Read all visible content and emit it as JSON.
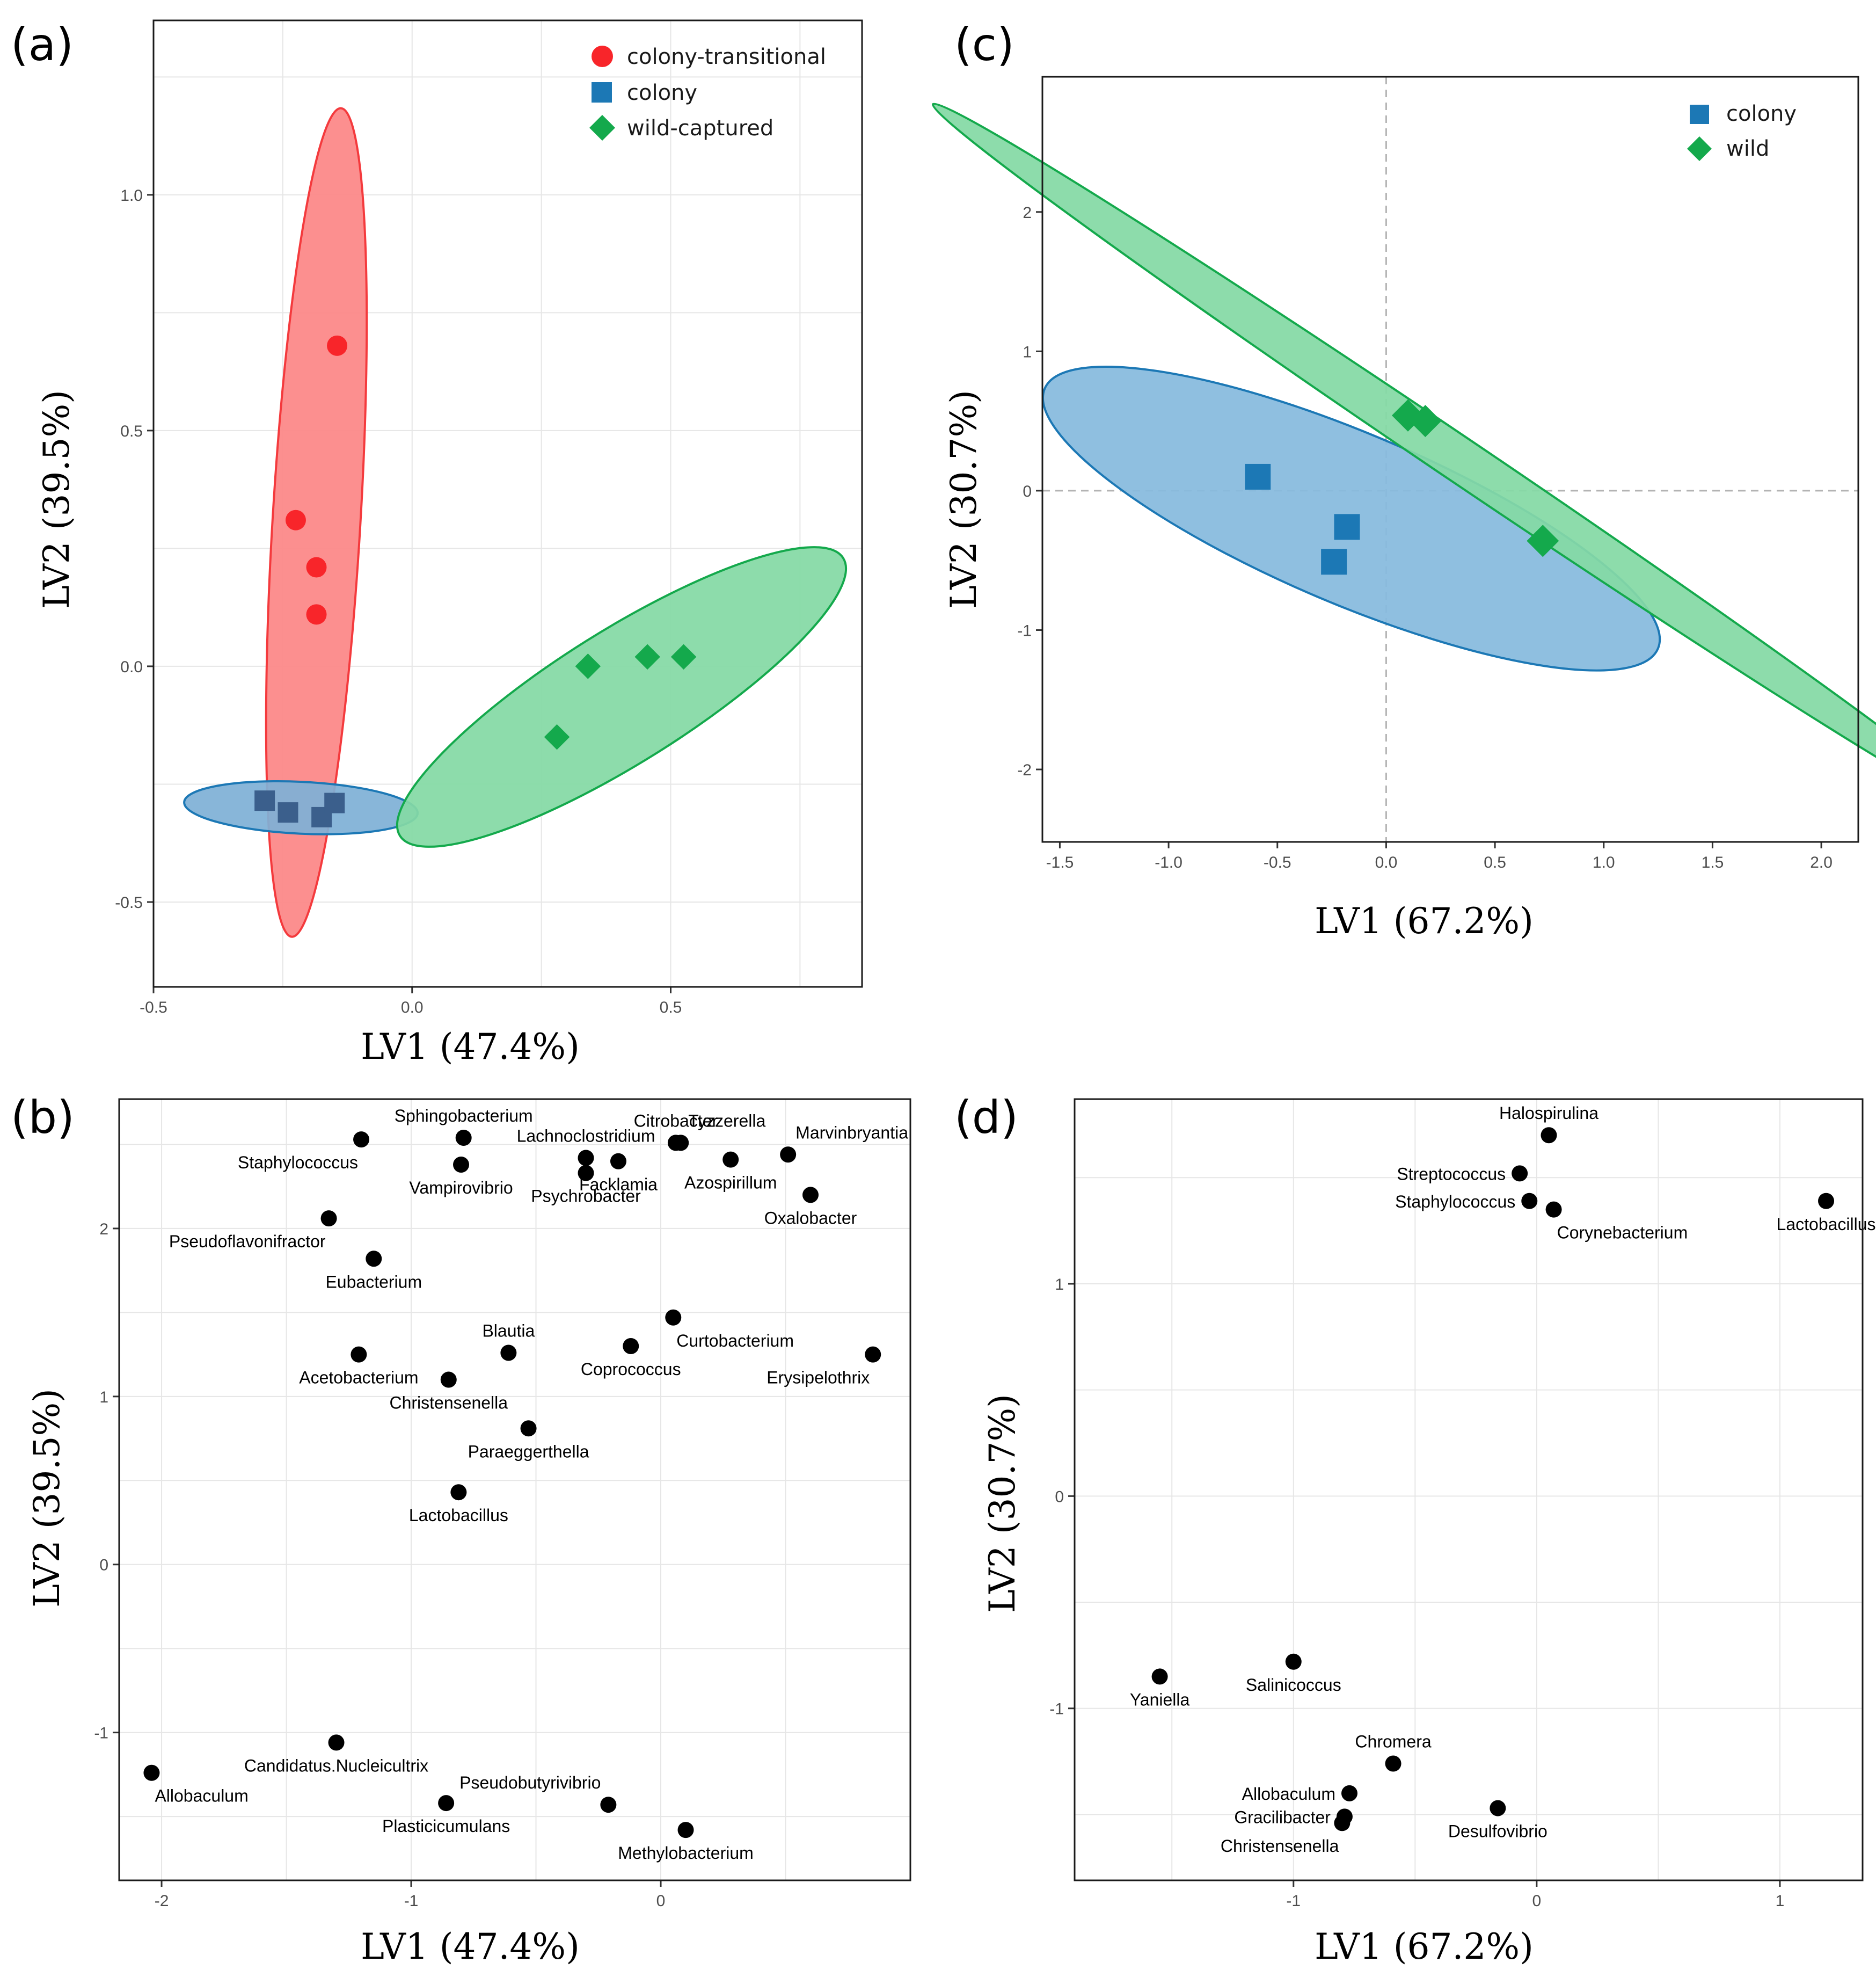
{
  "chart_data": [
    {
      "id": "a",
      "panel_label": "(a)",
      "type": "scatter",
      "xlabel": "LV1 (47.4%)",
      "ylabel": "LV2 (39.5%)",
      "xlim": [
        -0.5,
        0.87
      ],
      "ylim": [
        -0.68,
        1.37
      ],
      "xticks": [
        -0.5,
        0.0,
        0.5
      ],
      "xtick_labels": [
        "-0.5",
        "0.0",
        "0.5"
      ],
      "yticks": [
        -0.5,
        0.0,
        0.5,
        1.0
      ],
      "ytick_labels": [
        "-0.5",
        "0.0",
        "0.5",
        "1.0"
      ],
      "grid": true,
      "reference_lines": false,
      "legend_position": "top-right",
      "series": [
        {
          "name": "colony-transitional",
          "marker": "circle",
          "color": "#f8252a",
          "points": [
            [
              -0.145,
              0.68
            ],
            [
              -0.225,
              0.31
            ],
            [
              -0.185,
              0.21
            ],
            [
              -0.185,
              0.11
            ]
          ],
          "ellipse": {
            "cx": -0.185,
            "cy": 0.305,
            "rx": 0.88,
            "ry": 0.085,
            "angle_deg": 86.9,
            "fill": "#fc8686",
            "stroke": "#f43a3d"
          }
        },
        {
          "name": "colony",
          "marker": "square",
          "color": "#1c78b5",
          "points": [
            [
              -0.285,
              -0.285
            ],
            [
              -0.24,
              -0.31
            ],
            [
              -0.175,
              -0.32
            ],
            [
              -0.15,
              -0.29
            ]
          ],
          "ellipse": {
            "cx": -0.215,
            "cy": -0.3,
            "rx": 0.226,
            "ry": 0.055,
            "angle_deg": -3,
            "fill": "#7fb0d6",
            "stroke": "#1c78b5"
          }
        },
        {
          "name": "wild-captured",
          "marker": "diamond",
          "color": "#14a94c",
          "points": [
            [
              0.28,
              -0.15
            ],
            [
              0.34,
              0.0
            ],
            [
              0.455,
              0.02
            ],
            [
              0.525,
              0.02
            ]
          ],
          "ellipse": {
            "cx": 0.405,
            "cy": -0.065,
            "rx": 0.52,
            "ry": 0.136,
            "angle_deg": 34.5,
            "fill": "#84d9a5",
            "stroke": "#14a94c"
          }
        }
      ]
    },
    {
      "id": "b",
      "panel_label": "(b)",
      "type": "scatter",
      "xlabel": "LV1 (47.4%)",
      "ylabel": "LV2 (39.5%)",
      "xlim": [
        -2.17,
        1.0
      ],
      "ylim": [
        -1.88,
        2.77
      ],
      "xticks": [
        -2,
        -1,
        0
      ],
      "xtick_labels": [
        "-2",
        "-1",
        "0"
      ],
      "yticks": [
        -1,
        0,
        1,
        2
      ],
      "ytick_labels": [
        "-1",
        "0",
        "1",
        "2"
      ],
      "grid": true,
      "points": [
        {
          "label": "Sphingobacterium",
          "x": -0.79,
          "y": 2.54,
          "pos": "above"
        },
        {
          "label": "Staphylococcus",
          "x": -1.2,
          "y": 2.53,
          "pos": "below-left"
        },
        {
          "label": "Lachnoclostridium",
          "x": -0.3,
          "y": 2.42,
          "pos": "above"
        },
        {
          "label": "Vampirovibrio",
          "x": -0.8,
          "y": 2.38,
          "pos": "below"
        },
        {
          "label": "Psychrobacter",
          "x": -0.3,
          "y": 2.33,
          "pos": "below"
        },
        {
          "label": "Facklamia",
          "x": -0.17,
          "y": 2.4,
          "pos": "below"
        },
        {
          "label": "Citrobacter",
          "x": 0.06,
          "y": 2.51,
          "pos": "above"
        },
        {
          "label": "Tyzzerella",
          "x": 0.08,
          "y": 2.51,
          "pos": "above-right"
        },
        {
          "label": "Azospirillum",
          "x": 0.28,
          "y": 2.41,
          "pos": "below"
        },
        {
          "label": "Marvinbryantia",
          "x": 0.51,
          "y": 2.44,
          "pos": "above-right"
        },
        {
          "label": "Oxalobacter",
          "x": 0.6,
          "y": 2.2,
          "pos": "below"
        },
        {
          "label": "Pseudoflavonifractor",
          "x": -1.33,
          "y": 2.06,
          "pos": "below-left"
        },
        {
          "label": "Eubacterium",
          "x": -1.15,
          "y": 1.82,
          "pos": "below"
        },
        {
          "label": "Curtobacterium",
          "x": 0.05,
          "y": 1.47,
          "pos": "below-right"
        },
        {
          "label": "Coprococcus",
          "x": -0.12,
          "y": 1.3,
          "pos": "below"
        },
        {
          "label": "Blautia",
          "x": -0.61,
          "y": 1.26,
          "pos": "above"
        },
        {
          "label": "Erysipelothrix",
          "x": 0.85,
          "y": 1.25,
          "pos": "below-left"
        },
        {
          "label": "Acetobacterium",
          "x": -1.21,
          "y": 1.25,
          "pos": "below"
        },
        {
          "label": "Christensenella",
          "x": -0.85,
          "y": 1.1,
          "pos": "below"
        },
        {
          "label": "Paraeggerthella",
          "x": -0.53,
          "y": 0.81,
          "pos": "below"
        },
        {
          "label": "Lactobacillus",
          "x": -0.81,
          "y": 0.43,
          "pos": "below"
        },
        {
          "label": "Candidatus.Nucleicultrix",
          "x": -1.3,
          "y": -1.06,
          "pos": "below"
        },
        {
          "label": "Allobaculum",
          "x": -2.04,
          "y": -1.24,
          "pos": "below-right"
        },
        {
          "label": "Pseudobutyrivibrio",
          "x": -0.21,
          "y": -1.43,
          "pos": "above-left"
        },
        {
          "label": "Plasticicumulans",
          "x": -0.86,
          "y": -1.42,
          "pos": "below"
        },
        {
          "label": "Methylobacterium",
          "x": 0.1,
          "y": -1.58,
          "pos": "below"
        }
      ]
    },
    {
      "id": "c",
      "panel_label": "(c)",
      "type": "scatter",
      "xlabel": "LV1 (67.2%)",
      "ylabel": "LV2 (30.7%)",
      "xlim": [
        -1.58,
        2.17
      ],
      "ylim": [
        -2.52,
        2.97
      ],
      "xticks": [
        -1.5,
        -1.0,
        -0.5,
        0.0,
        0.5,
        1.0,
        1.5,
        2.0
      ],
      "xtick_labels": [
        "-1.5",
        "-1.0",
        "-0.5",
        "0.0",
        "0.5",
        "1.0",
        "1.5",
        "2.0"
      ],
      "yticks": [
        -2,
        -1,
        0,
        1,
        2
      ],
      "ytick_labels": [
        "-2",
        "-1",
        "0",
        "1",
        "2"
      ],
      "grid": false,
      "reference_lines": true,
      "legend_position": "top-right",
      "series": [
        {
          "name": "colony",
          "marker": "square",
          "color": "#1c78b5",
          "points": [
            [
              -0.59,
              0.1
            ],
            [
              -0.18,
              -0.26
            ],
            [
              -0.24,
              -0.51
            ]
          ],
          "ellipse": {
            "cx": -0.16,
            "cy": -0.2,
            "rx": 1.69,
            "ry": 0.51,
            "angle_deg": -33.5,
            "fill": "#86bade",
            "stroke": "#1c78b5"
          }
        },
        {
          "name": "wild",
          "marker": "diamond",
          "color": "#14a94c",
          "points": [
            [
              0.1,
              0.54
            ],
            [
              0.18,
              0.5
            ],
            [
              0.72,
              -0.36
            ]
          ],
          "ellipse": {
            "cx": 0.34,
            "cy": 0.22,
            "rx": 3.52,
            "ry": 0.12,
            "angle_deg": -46.5,
            "fill": "#84d9a5",
            "stroke": "#14a94c"
          }
        }
      ]
    },
    {
      "id": "d",
      "panel_label": "(d)",
      "type": "scatter",
      "xlabel": "LV1 (67.2%)",
      "ylabel": "LV2 (30.7%)",
      "xlim": [
        -1.9,
        1.34
      ],
      "ylim": [
        -1.81,
        1.87
      ],
      "xticks": [
        -1,
        0,
        1
      ],
      "xtick_labels": [
        "-1",
        "0",
        "1"
      ],
      "yticks": [
        -1,
        0,
        1
      ],
      "ytick_labels": [
        "-1",
        "0",
        "1"
      ],
      "grid": true,
      "points": [
        {
          "label": "Halospirulina",
          "x": 0.05,
          "y": 1.7,
          "pos": "above"
        },
        {
          "label": "Streptococcus",
          "x": -0.07,
          "y": 1.52,
          "pos": "left"
        },
        {
          "label": "Staphylococcus",
          "x": -0.03,
          "y": 1.39,
          "pos": "left"
        },
        {
          "label": "Corynebacterium",
          "x": 0.07,
          "y": 1.35,
          "pos": "below-right"
        },
        {
          "label": "Lactobacillus",
          "x": 1.19,
          "y": 1.39,
          "pos": "below"
        },
        {
          "label": "Salinicoccus",
          "x": -1.0,
          "y": -0.78,
          "pos": "below"
        },
        {
          "label": "Yaniella",
          "x": -1.55,
          "y": -0.85,
          "pos": "below"
        },
        {
          "label": "Chromera",
          "x": -0.59,
          "y": -1.26,
          "pos": "above"
        },
        {
          "label": "Allobaculum",
          "x": -0.77,
          "y": -1.4,
          "pos": "left"
        },
        {
          "label": "Gracilibacter",
          "x": -0.79,
          "y": -1.51,
          "pos": "left"
        },
        {
          "label": "Christensenella",
          "x": -0.8,
          "y": -1.54,
          "pos": "below-left"
        },
        {
          "label": "Desulfovibrio",
          "x": -0.16,
          "y": -1.47,
          "pos": "below"
        }
      ]
    }
  ]
}
